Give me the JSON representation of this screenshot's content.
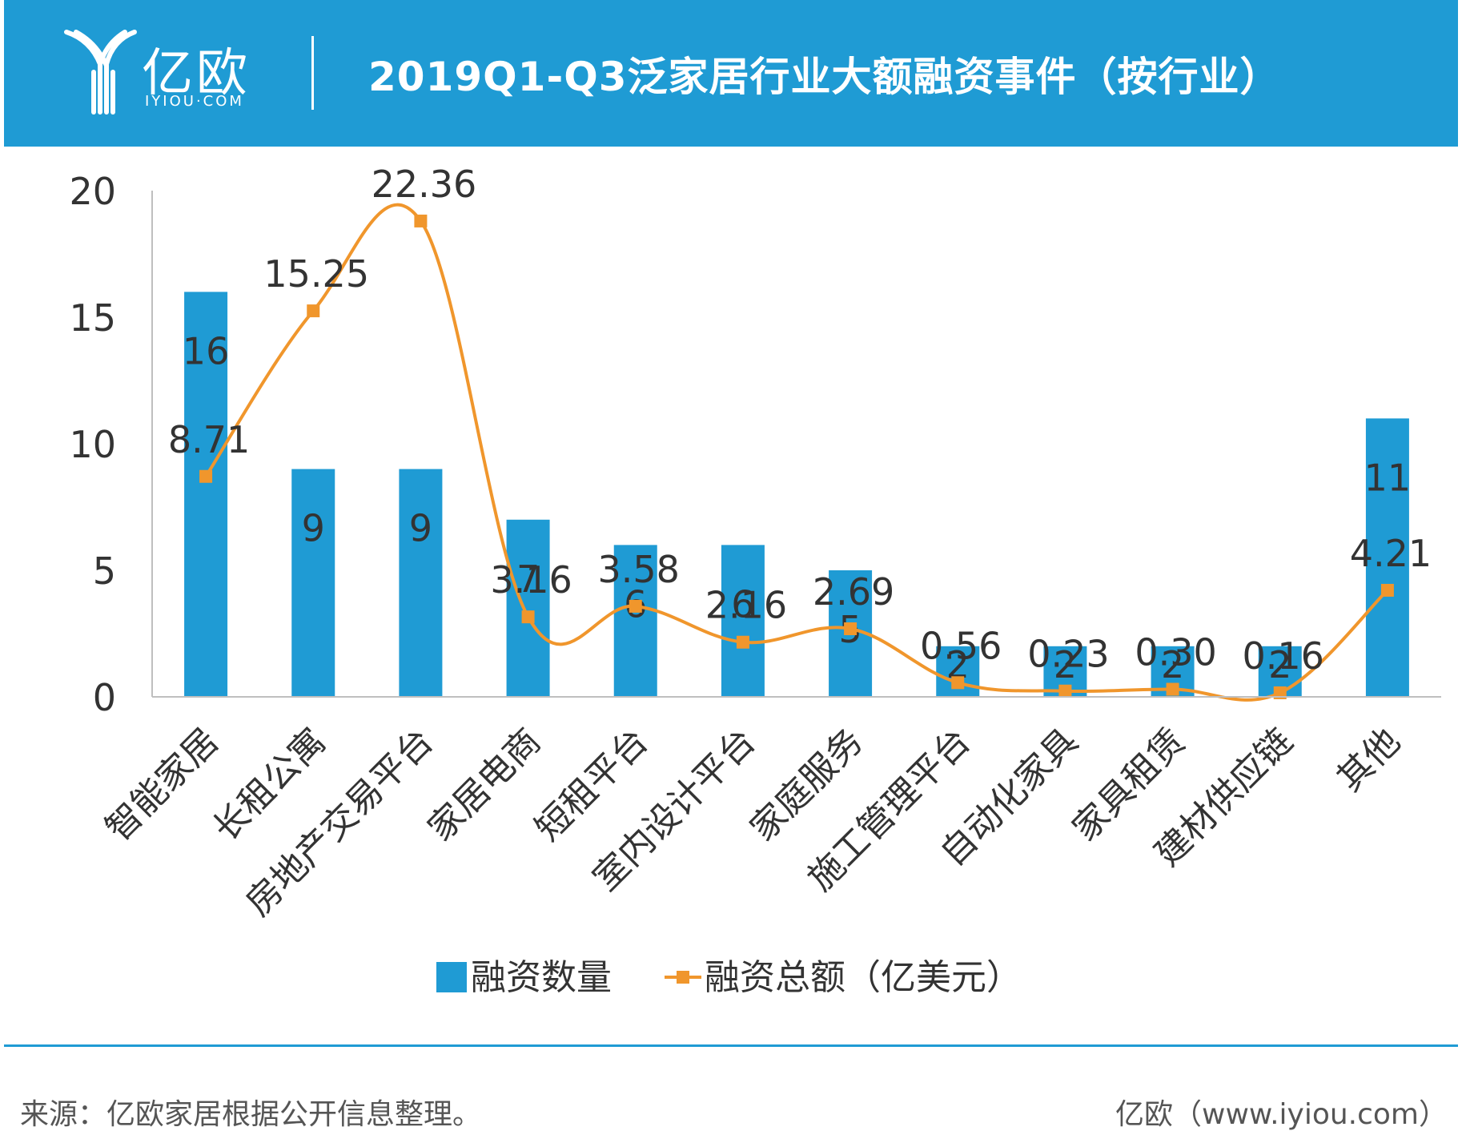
{
  "header": {
    "logo_text": "亿欧",
    "logo_sub": "IYIOU·COM",
    "title": "2019Q1-Q3泛家居行业大额融资事件（按行业）"
  },
  "colors": {
    "header_bg": "#1f9bd4",
    "bar": "#1f9bd4",
    "line": "#f0962c"
  },
  "chart_data": {
    "type": "bar",
    "categories": [
      "智能家居",
      "长租公寓",
      "房地产交易平台",
      "家居电商",
      "短租平台",
      "室内设计平台",
      "家庭服务",
      "施工管理平台",
      "自动化家具",
      "家具租赁",
      "建材供应链",
      "其他"
    ],
    "series": [
      {
        "name": "融资数量",
        "type": "bar",
        "values": [
          16,
          9,
          9,
          7,
          6,
          6,
          5,
          2,
          2,
          2,
          2,
          11
        ],
        "labels": [
          "16",
          "9",
          "9",
          "7",
          "6",
          "6",
          "5",
          "2",
          "2",
          "2",
          "2",
          "11"
        ]
      },
      {
        "name": "融资总额（亿美元）",
        "type": "line",
        "values": [
          8.71,
          15.25,
          22.36,
          3.16,
          3.58,
          2.16,
          2.69,
          0.56,
          0.23,
          0.3,
          0.16,
          4.21
        ],
        "labels": [
          "8.71",
          "15.25",
          "22.36",
          "3.16",
          "3.58",
          "2.16",
          "2.69",
          "0.56",
          "0.23",
          "0.30",
          "0.16",
          "4.21"
        ]
      }
    ],
    "ylim": [
      0,
      20
    ],
    "y_ticks": [
      "0",
      "5",
      "10",
      "15",
      "20"
    ],
    "grid": false,
    "legend_position": "bottom"
  },
  "footer": {
    "source": "来源：亿欧家居根据公开信息整理。",
    "site": "亿欧（www.iyiou.com）"
  }
}
